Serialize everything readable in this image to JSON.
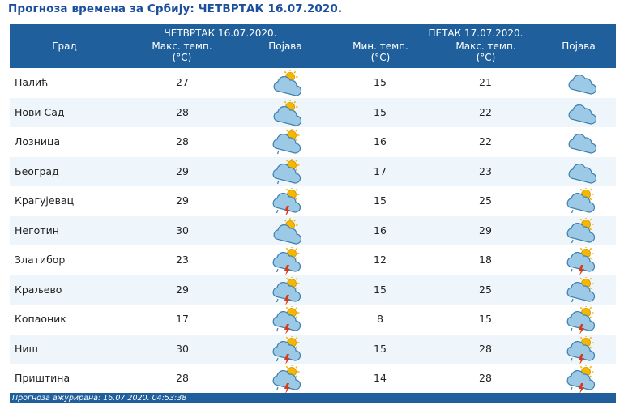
{
  "title": "Прогноза времена за Србију: ЧЕТВРТАК  16.07.2020.",
  "header": {
    "city": "Град",
    "day1": "ЧЕТВРТАК  16.07.2020.",
    "day2": "ПЕТАК  17.07.2020.",
    "max_temp_line1": "Макс. темп.",
    "min_temp_line1": "Мин. темп.",
    "unit": "(°C)",
    "phenomenon": "Појава"
  },
  "rows": [
    {
      "city": "Палић",
      "max1": "27",
      "icon1": "sun-behind-cloud-icon",
      "min2": "15",
      "max2": "21",
      "icon2": "cloud-icon"
    },
    {
      "city": "Нови Сад",
      "max1": "28",
      "icon1": "sun-behind-cloud-icon",
      "min2": "15",
      "max2": "22",
      "icon2": "cloud-icon"
    },
    {
      "city": "Лозница",
      "max1": "28",
      "icon1": "sun-cloud-rain-icon",
      "min2": "16",
      "max2": "22",
      "icon2": "cloud-icon"
    },
    {
      "city": "Београд",
      "max1": "29",
      "icon1": "sun-cloud-rain-icon",
      "min2": "17",
      "max2": "23",
      "icon2": "cloud-icon"
    },
    {
      "city": "Крагујевац",
      "max1": "29",
      "icon1": "sun-cloud-thunder-icon",
      "min2": "15",
      "max2": "25",
      "icon2": "sun-cloud-rain-icon"
    },
    {
      "city": "Неготин",
      "max1": "30",
      "icon1": "sun-behind-cloud-icon",
      "min2": "16",
      "max2": "29",
      "icon2": "sun-cloud-rain-icon"
    },
    {
      "city": "Златибор",
      "max1": "23",
      "icon1": "sun-cloud-thunder-icon",
      "min2": "12",
      "max2": "18",
      "icon2": "sun-cloud-thunder-icon"
    },
    {
      "city": "Краљево",
      "max1": "29",
      "icon1": "sun-cloud-thunder-icon",
      "min2": "15",
      "max2": "25",
      "icon2": "sun-cloud-rain-icon"
    },
    {
      "city": "Копаоник",
      "max1": "17",
      "icon1": "sun-cloud-thunder-icon",
      "min2": "8",
      "max2": "15",
      "icon2": "sun-cloud-thunder-icon"
    },
    {
      "city": "Ниш",
      "max1": "30",
      "icon1": "sun-cloud-thunder-icon",
      "min2": "15",
      "max2": "28",
      "icon2": "sun-cloud-thunder-icon"
    },
    {
      "city": "Приштина",
      "max1": "28",
      "icon1": "sun-cloud-thunder-icon",
      "min2": "14",
      "max2": "28",
      "icon2": "sun-cloud-thunder-icon"
    }
  ],
  "footer": "Прогноза ажурирана:  16.07.2020. 04:53:38",
  "colors": {
    "header": "#1f5f9b",
    "title": "#1b4f9c",
    "row_alt": "#eef6fb",
    "cloud": "#9cc9e6",
    "sun": "#f5b800",
    "bolt": "#d83a1c"
  }
}
